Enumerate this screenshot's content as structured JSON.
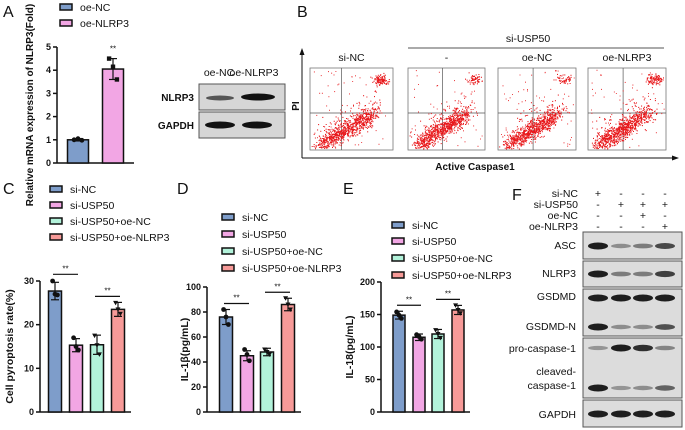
{
  "panels": {
    "A": "A",
    "B": "B",
    "C": "C",
    "D": "D",
    "E": "E",
    "F": "F"
  },
  "colors": {
    "si-NC": "#7e9dca",
    "si-USP50": "#f2a6e4",
    "si-USP50+oe-NC": "#b2f2da",
    "si-USP50+oe-NLRP3": "#f79a98",
    "oe-NC": "#7e9dca",
    "oe-NLRP3": "#f2a6e4"
  },
  "panel_A": {
    "blot_columns": [
      "oe-NC",
      "oe-NLRP3"
    ],
    "blot_rows": [
      "NLRP3",
      "GAPDH"
    ]
  },
  "panel_B": {
    "group_label": "si-USP50",
    "columns": [
      "si-NC",
      "-",
      "oe-NC",
      "oe-NLRP3"
    ],
    "y_label": "PI",
    "x_label": "Active Caspase1"
  },
  "panel_F": {
    "conditions": [
      {
        "label": "si-NC",
        "marks": [
          "+",
          "-",
          "-",
          "-"
        ]
      },
      {
        "label": "si-USP50",
        "marks": [
          "-",
          "+",
          "+",
          "+"
        ]
      },
      {
        "label": "oe-NC",
        "marks": [
          "-",
          "-",
          "+",
          "-"
        ]
      },
      {
        "label": "oe-NLRP3",
        "marks": [
          "-",
          "-",
          "-",
          "+"
        ]
      }
    ],
    "rows": [
      "ASC",
      "NLRP3",
      "GSDMD",
      "GSDMD-N",
      "pro-caspase-1",
      "cleaved-",
      "caspase-1",
      "GAPDH"
    ]
  },
  "chart_data": [
    {
      "id": "A",
      "type": "bar",
      "categories": [
        "oe-NC",
        "oe-NLRP3"
      ],
      "values": [
        1.0,
        4.05
      ],
      "errors": [
        0.05,
        0.45
      ],
      "points": [
        [
          1.0,
          1.05,
          0.98
        ],
        [
          4.5,
          4.15,
          3.6
        ]
      ],
      "ylabel": "Relative mRNA expression of NLRP3(Fold)",
      "ylim": [
        0,
        5
      ],
      "yticks": [
        "0",
        "1",
        "2",
        "3",
        "4",
        "5"
      ],
      "significance": [
        "**"
      ],
      "legend": "top-left"
    },
    {
      "id": "C",
      "type": "bar",
      "categories": [
        "si-NC",
        "si-USP50",
        "si-USP50+oe-NC",
        "si-USP50+oe-NLRP3"
      ],
      "values": [
        27.7,
        15.3,
        15.4,
        23.5
      ],
      "errors": [
        2.0,
        1.5,
        2.2,
        1.6
      ],
      "points": [
        [
          30,
          27,
          26.8
        ],
        [
          17,
          15,
          14.2
        ],
        [
          17.5,
          15.3,
          13.2
        ],
        [
          25,
          23.5,
          22.5
        ]
      ],
      "ylabel": "Cell pyroptosis rate(%)",
      "ylim": [
        0,
        30
      ],
      "yticks": [
        "0",
        "10",
        "20",
        "30"
      ],
      "significance": [
        "**",
        "**"
      ],
      "legend": "top-left"
    },
    {
      "id": "D",
      "type": "bar",
      "categories": [
        "si-NC",
        "si-USP50",
        "si-USP50+oe-NC",
        "si-USP50+oe-NLRP3"
      ],
      "values": [
        76,
        45,
        48,
        86
      ],
      "errors": [
        6,
        4,
        3,
        5
      ],
      "points": [
        [
          82,
          76,
          70
        ],
        [
          50,
          46,
          41
        ],
        [
          50,
          48,
          46
        ],
        [
          91,
          86,
          82
        ]
      ],
      "ylabel": "IL-1β(pg/mL)",
      "ylim": [
        0,
        100
      ],
      "yticks": [
        "0",
        "20",
        "40",
        "60",
        "80",
        "100"
      ],
      "significance": [
        "**",
        "**"
      ],
      "legend": "top-left"
    },
    {
      "id": "E",
      "type": "bar",
      "categories": [
        "si-NC",
        "si-USP50",
        "si-USP50+oe-NC",
        "si-USP50+oe-NLRP3"
      ],
      "values": [
        149,
        115,
        120,
        157
      ],
      "errors": [
        6,
        5,
        7,
        7
      ],
      "points": [
        [
          154,
          149,
          144
        ],
        [
          119,
          116,
          112
        ],
        [
          126,
          120,
          114
        ],
        [
          164,
          157,
          152
        ]
      ],
      "ylabel": "IL-18(pg/mL)",
      "ylim": [
        0,
        200
      ],
      "yticks": [
        "0",
        "50",
        "100",
        "150",
        "200"
      ],
      "significance": [
        "**",
        "**"
      ],
      "legend": "top-left"
    }
  ]
}
